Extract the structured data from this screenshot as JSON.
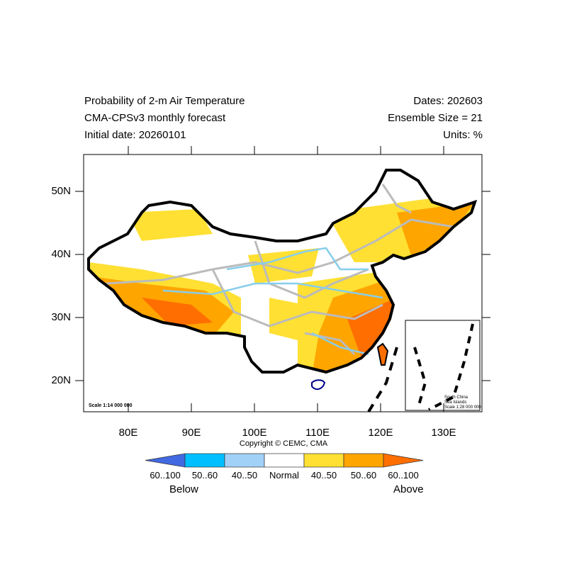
{
  "header": {
    "title_left": [
      "Probability of 2-m Air Temperature",
      "CMA-CPSv3 monthly forecast",
      "Initial date: 20260101"
    ],
    "title_right": [
      "Dates: 202603",
      "Ensemble Size = 21",
      "Units: %"
    ]
  },
  "map": {
    "lon_ticks": [
      "80E",
      "90E",
      "100E",
      "110E",
      "120E",
      "130E"
    ],
    "lat_ticks": [
      "50N",
      "40N",
      "30N",
      "20N"
    ],
    "lon_range": [
      73,
      136
    ],
    "lat_range": [
      15,
      56
    ],
    "scale_label": "Scale 1:14 000 000",
    "inset": {
      "lines": [
        "South China",
        "Sea Islands",
        "Scale 1:28 000 000"
      ]
    }
  },
  "copyright": "Copyright © CEMC, CMA",
  "legend": {
    "bins": [
      {
        "label": "60..100",
        "color": "#4169e1"
      },
      {
        "label": "50..60",
        "color": "#00bfff"
      },
      {
        "label": "40..50",
        "color": "#a2d1f8"
      },
      {
        "label": "Normal",
        "color": "#ffffff"
      },
      {
        "label": "40..50",
        "color": "#ffe033"
      },
      {
        "label": "50..60",
        "color": "#ffa500"
      },
      {
        "label": "60..100",
        "color": "#ff6e00"
      }
    ],
    "below_label": "Below",
    "above_label": "Above"
  }
}
